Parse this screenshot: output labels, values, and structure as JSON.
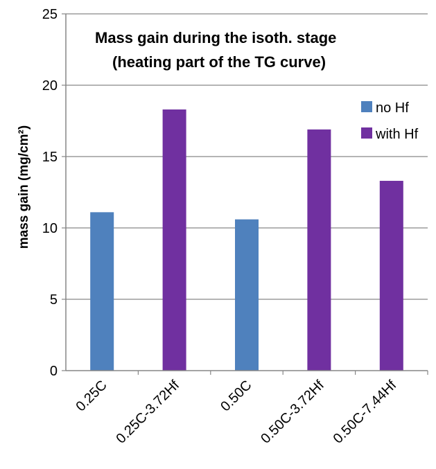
{
  "chart_data": {
    "type": "bar",
    "title_line1": "Mass gain during the isoth. stage",
    "title_line2": "(heating part of the TG curve)",
    "ylabel": "mass gain (mg/cm²)",
    "xlabel": "",
    "ylim": [
      0,
      25
    ],
    "yticks": [
      0,
      5,
      10,
      15,
      20,
      25
    ],
    "grid": true,
    "legend_position": "top-right",
    "categories": [
      "0.25C",
      "0.25C-3.72Hf",
      "0.50C",
      "0.50C-3.72Hf",
      "0.50C-7.44Hf"
    ],
    "series": [
      {
        "name": "no Hf",
        "color": "#4f81bd",
        "values": [
          11.1,
          null,
          10.6,
          null,
          null
        ]
      },
      {
        "name": "with Hf",
        "color": "#7030a0",
        "values": [
          null,
          18.3,
          null,
          16.9,
          13.3
        ]
      }
    ]
  }
}
